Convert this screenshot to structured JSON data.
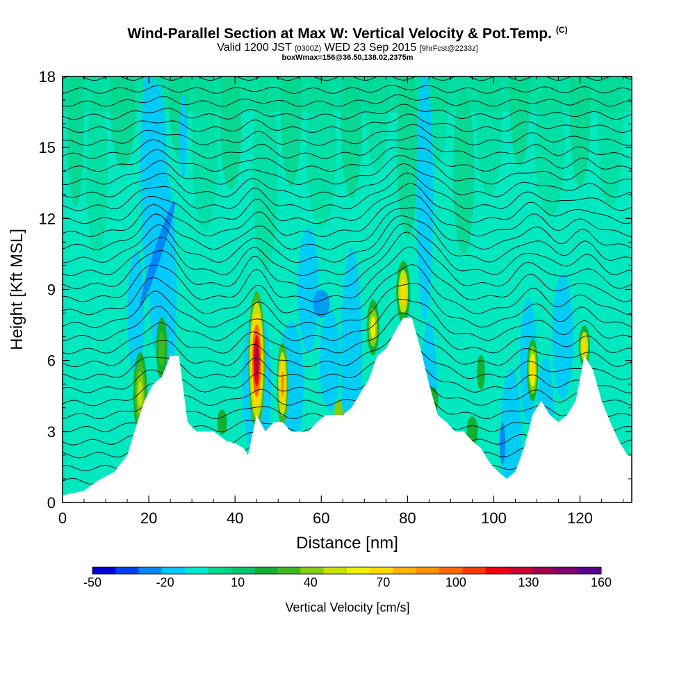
{
  "title": {
    "main": "Wind-Parallel Section at Max W: Vertical Velocity & Pot.Temp.",
    "copyright": "(C)",
    "valid_prefix": "Valid 1200 JST",
    "valid_utc": "(0300Z)",
    "valid_date": "WED 23 Sep 2015",
    "forecast": "[9hrFcst@2233z]",
    "box": "boxWmax=156@36.50,138.02,2375m"
  },
  "chart_data": {
    "type": "heatmap",
    "xlabel": "Distance [nm]",
    "ylabel": "Height [Kft MSL]",
    "xlim": [
      0,
      132
    ],
    "ylim": [
      0,
      18
    ],
    "x_ticks": [
      0,
      20,
      40,
      60,
      80,
      100,
      120
    ],
    "y_ticks": [
      0,
      3,
      6,
      9,
      12,
      15,
      18
    ],
    "terrain": {
      "x": [
        0,
        5,
        8,
        12,
        15,
        17,
        19,
        21,
        23,
        25,
        27,
        29,
        31,
        33,
        35,
        38,
        40,
        42,
        43,
        45,
        47,
        49,
        51,
        53,
        55,
        57,
        59,
        61,
        63,
        65,
        67,
        69,
        71,
        73,
        75,
        77,
        79,
        81,
        83,
        85,
        87,
        89,
        91,
        93,
        95,
        97,
        99,
        101,
        103,
        105,
        107,
        109,
        111,
        113,
        115,
        117,
        119,
        121,
        123,
        125,
        127,
        129,
        131,
        132
      ],
      "top": [
        0.3,
        0.5,
        0.9,
        1.3,
        2.0,
        3.2,
        4.3,
        5.0,
        5.3,
        6.2,
        6.2,
        3.4,
        3.0,
        3.0,
        3.0,
        2.6,
        2.5,
        2.3,
        2.0,
        3.7,
        3.0,
        3.4,
        3.4,
        3.0,
        3.0,
        3.0,
        3.4,
        3.7,
        3.7,
        3.7,
        4.0,
        4.6,
        5.2,
        6.2,
        6.5,
        7.2,
        7.8,
        7.8,
        6.5,
        5.0,
        3.7,
        3.4,
        3.0,
        3.0,
        2.6,
        2.3,
        1.7,
        1.3,
        1.0,
        1.3,
        2.3,
        3.7,
        4.3,
        3.7,
        3.4,
        3.7,
        4.3,
        6.2,
        5.6,
        4.3,
        3.4,
        2.6,
        2.0,
        2.0
      ]
    },
    "colorbar": {
      "label": "Vertical Velocity [cm/s]",
      "tick_labels": [
        "-50",
        "-20",
        "10",
        "40",
        "70",
        "100",
        "130",
        "160"
      ],
      "colors": [
        "#0000d8",
        "#0040f0",
        "#0088f8",
        "#00c8ff",
        "#00e8d0",
        "#00d890",
        "#00c870",
        "#10b030",
        "#40b820",
        "#88cc10",
        "#c8e000",
        "#f0f000",
        "#ffd800",
        "#ffb000",
        "#ff9000",
        "#ff6800",
        "#ff3800",
        "#ee0010",
        "#cc0030",
        "#a00050",
        "#800070",
        "#5a0090"
      ]
    },
    "plot_colors": {
      "frame_bg": "#00e8c0",
      "ridge": "#10b030",
      "weak_up": "#00d890",
      "down": "#00c8ff",
      "strong_down": "#0088f8",
      "contour": "#000000"
    }
  }
}
